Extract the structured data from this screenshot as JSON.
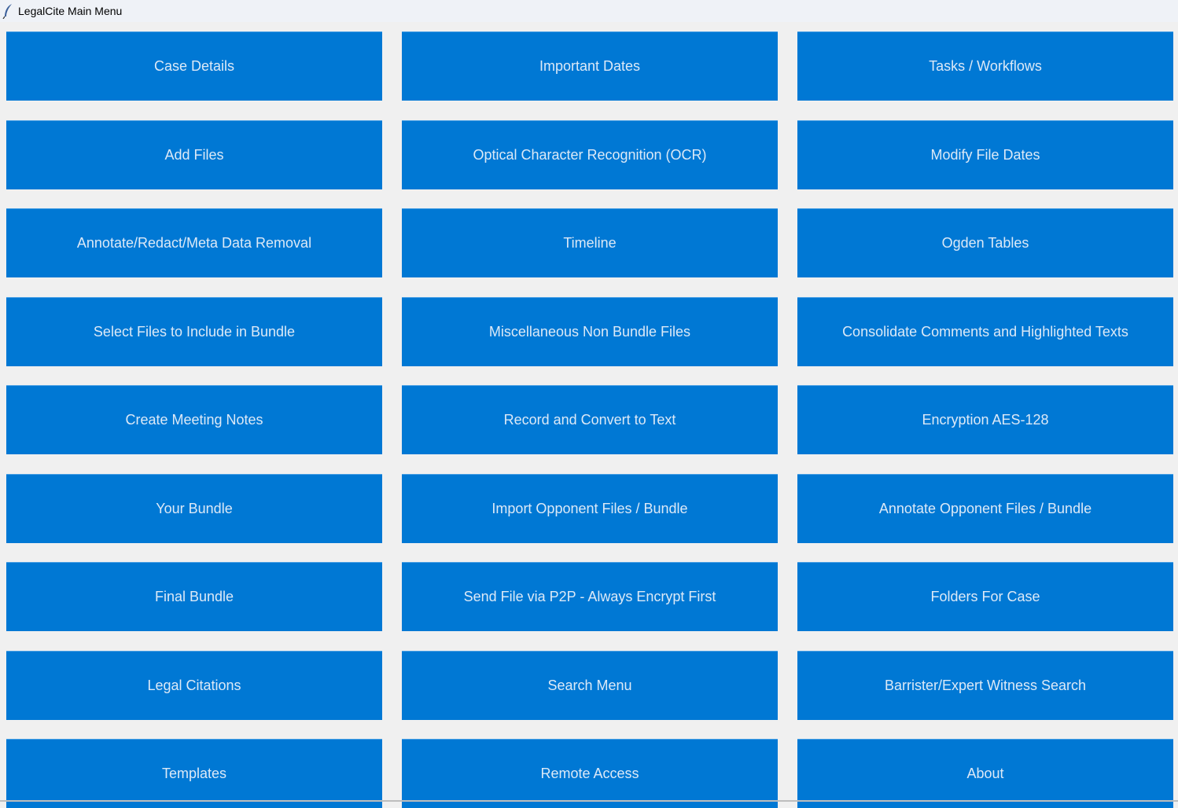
{
  "window": {
    "title": "LegalCite Main Menu",
    "icon": "feather-icon"
  },
  "colors": {
    "button": "#0078d4",
    "button_text": "#dce9f7",
    "background": "#f0f0f0"
  },
  "buttons": [
    "Case Details",
    "Important Dates",
    "Tasks / Workflows",
    "Add Files",
    "Optical Character Recognition (OCR)",
    "Modify File Dates",
    "Annotate/Redact/Meta Data Removal",
    "Timeline",
    "Ogden Tables",
    "Select Files to Include in Bundle",
    "Miscellaneous Non Bundle Files",
    "Consolidate Comments and Highlighted Texts",
    "Create Meeting Notes",
    "Record and Convert to Text",
    "Encryption AES-128",
    "Your Bundle",
    "Import Opponent Files / Bundle",
    "Annotate Opponent Files / Bundle",
    "Final Bundle",
    "Send File via P2P - Always Encrypt First",
    "Folders For Case",
    "Legal Citations",
    "Search Menu",
    "Barrister/Expert Witness Search",
    "Templates",
    "Remote Access",
    "About"
  ]
}
